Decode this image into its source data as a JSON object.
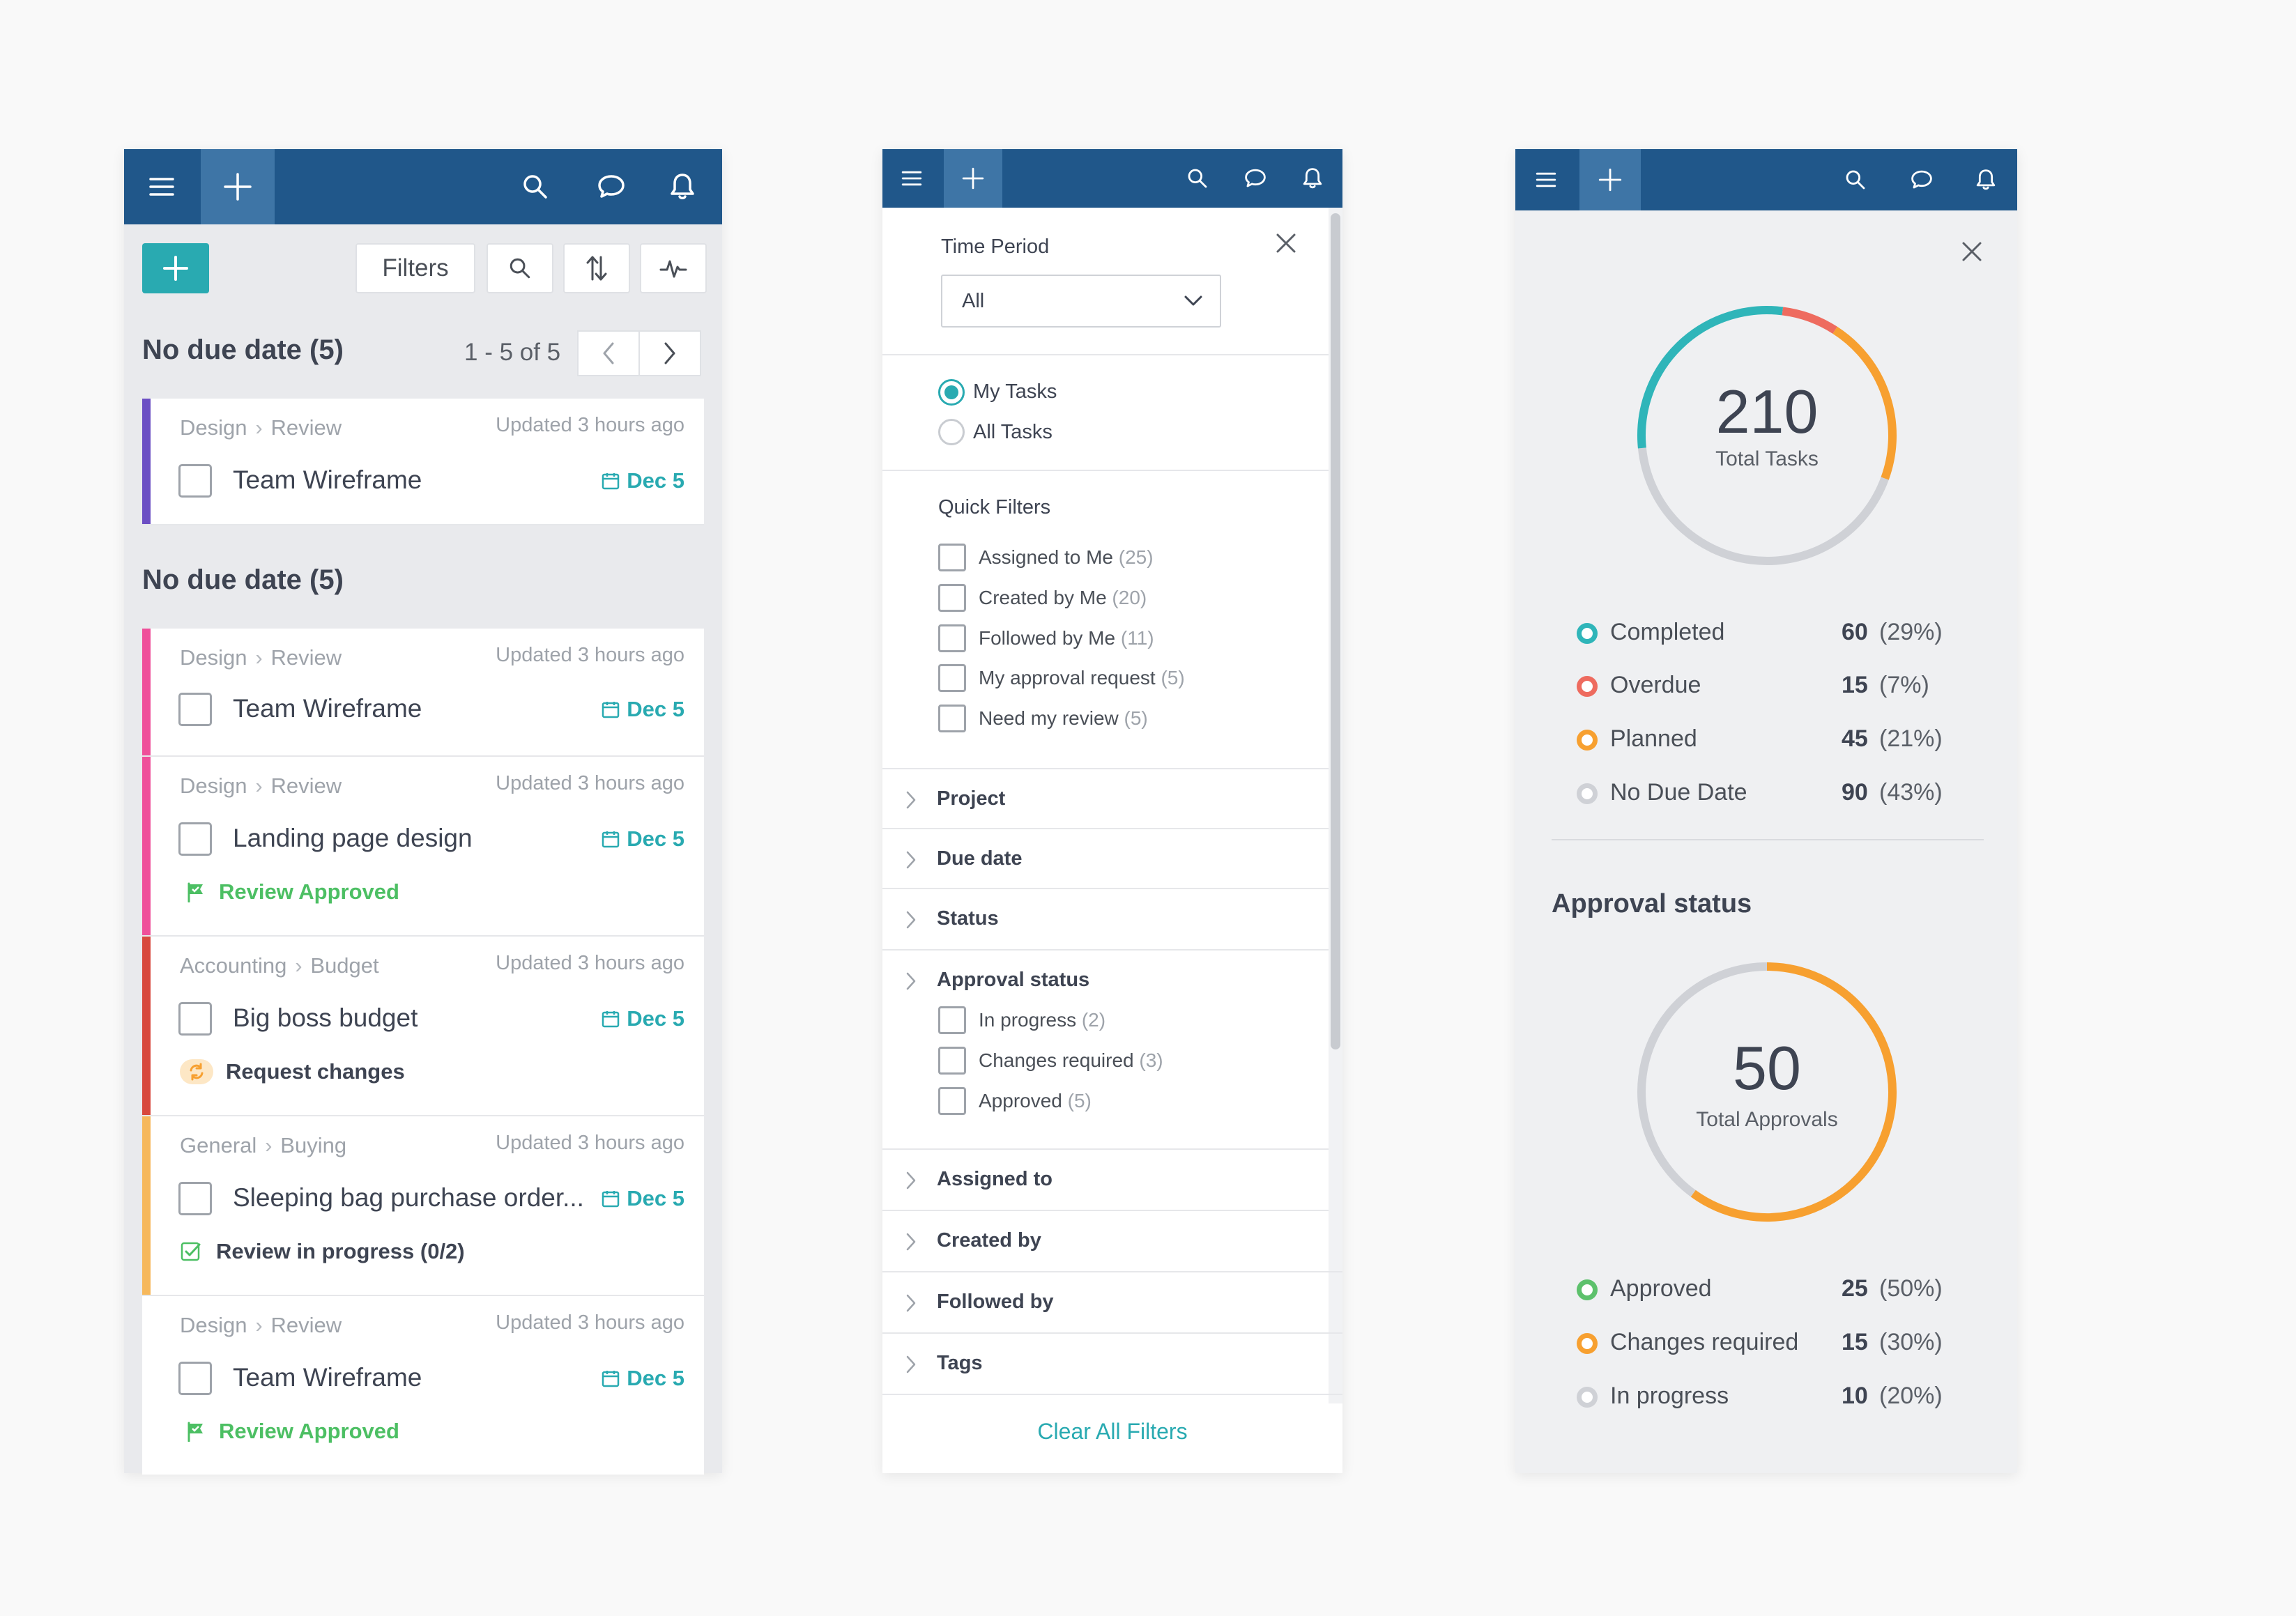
{
  "topbar_icons": [
    "menu-icon",
    "plus-icon",
    "search-icon",
    "chat-icon",
    "bell-icon"
  ],
  "colors": {
    "topbar": "#20578a",
    "topbar_plus": "#3e75a6",
    "accent": "#29aab1",
    "completed": "#2fb5b9",
    "overdue": "#ee6b5f",
    "planned": "#f7a030",
    "no_due": "#cfd1d6",
    "approved": "#5dc16c",
    "changes": "#f7a030",
    "in_progress": "#cfd1d6"
  },
  "task_panel": {
    "filters_label": "Filters",
    "pager": {
      "text": "1 - 5 of 5"
    },
    "group1": {
      "title": "No due date (5)",
      "cards": [
        {
          "crumb_a": "Design",
          "crumb_b": "Review",
          "updated": "Updated 3 hours ago",
          "title": "Team Wireframe",
          "due": "Dec 5",
          "bar_color": "#6c4fc4",
          "status": ""
        }
      ]
    },
    "group2": {
      "title": "No due date (5)",
      "cards": [
        {
          "crumb_a": "Design",
          "crumb_b": "Review",
          "updated": "Updated 3 hours ago",
          "title": "Team Wireframe",
          "due": "Dec 5",
          "bar_color": "#ef4f9a"
        },
        {
          "crumb_a": "Design",
          "crumb_b": "Review",
          "updated": "Updated 3 hours ago",
          "title": "Landing page design",
          "due": "Dec 5",
          "bar_color": "#ef4f9a",
          "status": "Review Approved"
        },
        {
          "crumb_a": "Accounting",
          "crumb_b": "Budget",
          "updated": "Updated 3 hours ago",
          "title": "Big boss budget",
          "due": "Dec 5",
          "bar_color": "#d8493e",
          "status": "Request changes"
        },
        {
          "crumb_a": "General",
          "crumb_b": "Buying",
          "updated": "Updated 3 hours ago",
          "title": "Sleeping bag purchase order...",
          "due": "Dec 5",
          "bar_color": "#f6b85c",
          "status": "Review in progress (0/2)"
        },
        {
          "crumb_a": "Design",
          "crumb_b": "Review",
          "updated": "Updated 3 hours ago",
          "title": "Team Wireframe",
          "due": "Dec 5",
          "bar_color": "#ffffff",
          "status": "Review Approved"
        }
      ]
    }
  },
  "filter_panel": {
    "time_period_label": "Time Period",
    "time_period_value": "All",
    "radios": [
      {
        "label": "My Tasks",
        "selected": true
      },
      {
        "label": "All Tasks",
        "selected": false
      }
    ],
    "quick_filters_title": "Quick Filters",
    "quick_filters": [
      {
        "label": "Assigned to Me",
        "count": "(25)"
      },
      {
        "label": "Created by Me",
        "count": "(20)"
      },
      {
        "label": "Followed by Me",
        "count": "(11)"
      },
      {
        "label": "My approval request",
        "count": "(5)"
      },
      {
        "label": "Need my review",
        "count": "(5)"
      }
    ],
    "accordions": [
      "Project",
      "Due date",
      "Status",
      "Approval status",
      "Assigned to",
      "Created by",
      "Followed by",
      "Tags"
    ],
    "approval_options": [
      {
        "label": "In progress",
        "count": "(2)"
      },
      {
        "label": "Changes required",
        "count": "(3)"
      },
      {
        "label": "Approved",
        "count": "(5)"
      }
    ],
    "clear_label": "Clear All Filters"
  },
  "stats_panel": {
    "tasks_donut": {
      "total": "210",
      "label": "Total Tasks"
    },
    "tasks_legend": [
      {
        "name": "Completed",
        "value": "60",
        "pct": "(29%)",
        "color": "#2fb5b9"
      },
      {
        "name": "Overdue",
        "value": "15",
        "pct": "(7%)",
        "color": "#ee6b5f"
      },
      {
        "name": "Planned",
        "value": "45",
        "pct": "(21%)",
        "color": "#f7a030"
      },
      {
        "name": "No Due Date",
        "value": "90",
        "pct": "(43%)",
        "color": "#cfd1d6"
      }
    ],
    "approval_title": "Approval status",
    "approvals_donut": {
      "total": "50",
      "label": "Total Approvals"
    },
    "approvals_legend": [
      {
        "name": "Approved",
        "value": "25",
        "pct": "(50%)",
        "color": "#5dc16c"
      },
      {
        "name": "Changes required",
        "value": "15",
        "pct": "(30%)",
        "color": "#f7a030"
      },
      {
        "name": "In progress",
        "value": "10",
        "pct": "(20%)",
        "color": "#cfd1d6"
      }
    ]
  }
}
